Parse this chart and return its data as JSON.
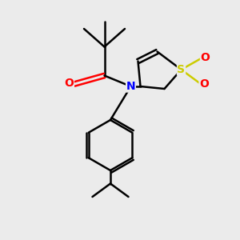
{
  "background_color": "#ebebeb",
  "atom_colors": {
    "N": "#0000ff",
    "O": "#ff0000",
    "S": "#cccc00",
    "C": "#000000"
  },
  "line_color": "#000000",
  "line_width": 1.8,
  "fig_size": [
    3.0,
    3.0
  ],
  "dpi": 100
}
